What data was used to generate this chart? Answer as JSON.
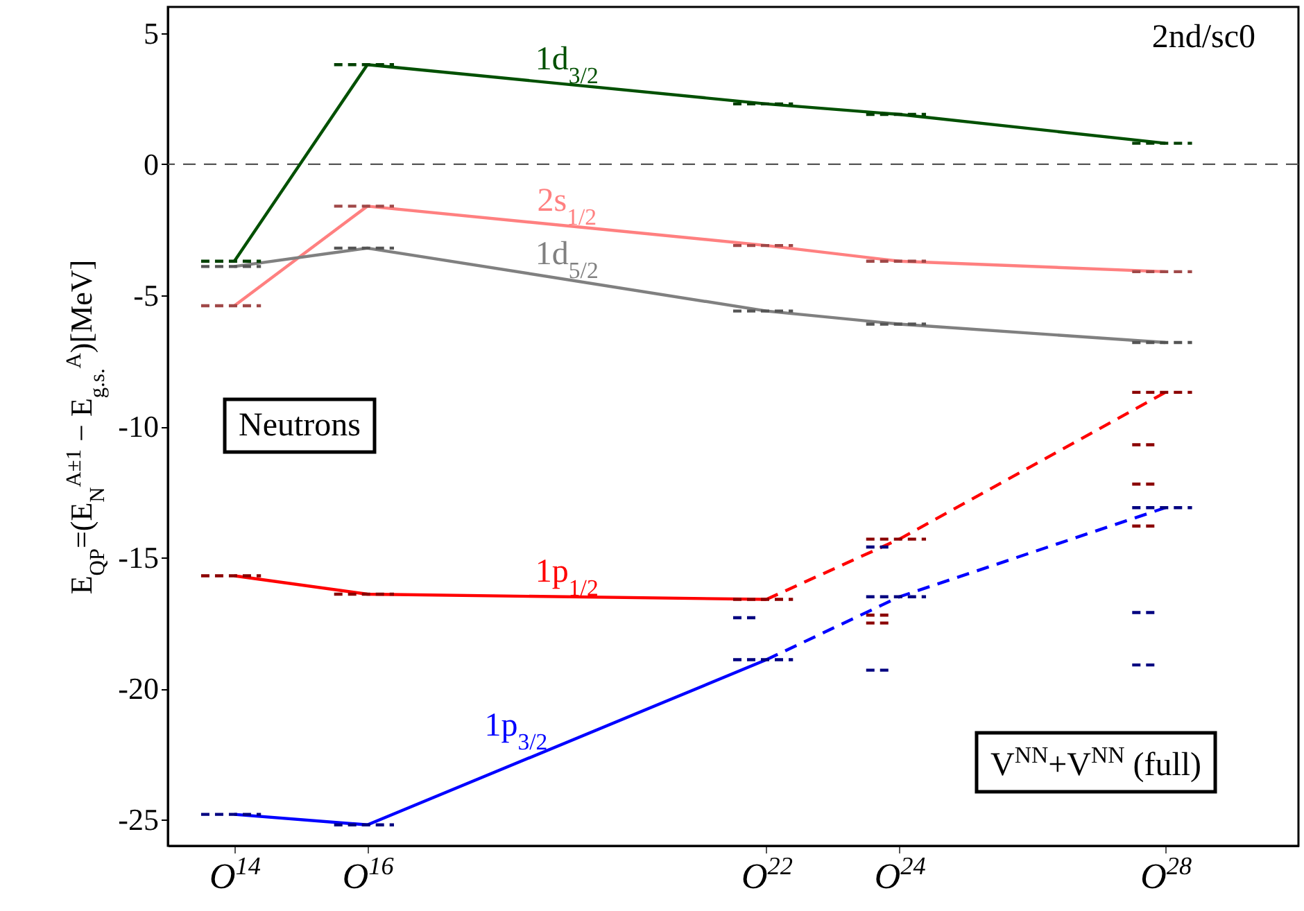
{
  "chart_data": {
    "type": "line",
    "ylabel": "E$_{QP}$=(E$_{N}$$^{A±1}$ − E$_{g.s.}$$^{A}$)[MeV]",
    "xlim": [
      13,
      30
    ],
    "xticks": [
      {
        "value": 14,
        "label": "O$^{14}$"
      },
      {
        "value": 16,
        "label": "O$^{16}$"
      },
      {
        "value": 22,
        "label": "O$^{22}$"
      },
      {
        "value": 24,
        "label": "O$^{24}$"
      },
      {
        "value": 28,
        "label": "O$^{28}$"
      }
    ],
    "ylim": [
      -26,
      6
    ],
    "yticks": [
      5,
      0,
      -5,
      -10,
      -15,
      -20,
      -25
    ],
    "annotations": [
      "2nd/sc0",
      "Neutrons",
      "V$^{NN}$+V$^{NN}$ (full)"
    ],
    "ref_lines": [
      {
        "axis": "y",
        "value": 0,
        "color": "#555555",
        "line_style": "dashed"
      }
    ],
    "series": [
      {
        "name": "1d$_{3/2}$",
        "color": "#005000",
        "x": [
          14,
          16,
          22,
          24,
          28
        ],
        "values": [
          -3.7,
          3.8,
          2.3,
          1.9,
          0.8
        ]
      },
      {
        "name": "2s$_{1/2}$",
        "color": "#ff8080",
        "x": [
          14,
          16,
          22,
          24,
          28
        ],
        "values": [
          -5.4,
          -1.6,
          -3.1,
          -3.7,
          -4.1
        ]
      },
      {
        "name": "1d$_{5/2}$",
        "color": "#808080",
        "x": [
          14,
          16,
          22,
          24,
          28
        ],
        "values": [
          -3.9,
          -3.2,
          -5.6,
          -6.1,
          -6.8
        ]
      },
      {
        "name": "1p$_{1/2}$",
        "color": "#ff0000",
        "x": [
          14,
          16,
          22
        ],
        "values": [
          -15.7,
          -16.4,
          -16.6
        ]
      },
      {
        "color": "#ff0000",
        "line_style": "dashed",
        "x": [
          22,
          24,
          28
        ],
        "values": [
          -16.6,
          -14.3,
          -8.7
        ]
      },
      {
        "name": "1p$_{3/2}$",
        "color": "#0000ff",
        "x": [
          14,
          16,
          22
        ],
        "values": [
          -24.8,
          -25.2,
          -18.9
        ]
      },
      {
        "color": "#0000ff",
        "line_style": "dashed",
        "x": [
          22,
          24,
          28
        ],
        "values": [
          -18.9,
          -16.5,
          -13.1
        ]
      },
      {
        "color": "#004000",
        "line_style": "dashed",
        "x": [
          13.5,
          14.4
        ],
        "values": [
          -3.7,
          -3.7
        ]
      },
      {
        "color": "#004000",
        "line_style": "dashed",
        "x": [
          15.5,
          16.4
        ],
        "values": [
          3.8,
          3.8
        ]
      },
      {
        "color": "#004000",
        "line_style": "dashed",
        "x": [
          21.5,
          22.4
        ],
        "values": [
          2.3,
          2.3
        ]
      },
      {
        "color": "#004000",
        "line_style": "dashed",
        "x": [
          23.5,
          24.4
        ],
        "values": [
          1.9,
          1.9
        ]
      },
      {
        "color": "#004000",
        "line_style": "dashed",
        "x": [
          27.5,
          28.4
        ],
        "values": [
          0.8,
          0.8
        ]
      },
      {
        "color": "#a04848",
        "line_style": "dashed",
        "x": [
          13.5,
          14.4
        ],
        "values": [
          -5.4,
          -5.4
        ]
      },
      {
        "color": "#a04848",
        "line_style": "dashed",
        "x": [
          15.5,
          16.4
        ],
        "values": [
          -1.6,
          -1.6
        ]
      },
      {
        "color": "#a04848",
        "line_style": "dashed",
        "x": [
          21.5,
          22.4
        ],
        "values": [
          -3.1,
          -3.1
        ]
      },
      {
        "color": "#a04848",
        "line_style": "dashed",
        "x": [
          23.5,
          24.4
        ],
        "values": [
          -3.7,
          -3.7
        ]
      },
      {
        "color": "#a04848",
        "line_style": "dashed",
        "x": [
          27.5,
          28.4
        ],
        "values": [
          -4.1,
          -4.1
        ]
      },
      {
        "color": "#555555",
        "line_style": "dashed",
        "x": [
          13.5,
          14.4
        ],
        "values": [
          -3.9,
          -3.9
        ]
      },
      {
        "color": "#555555",
        "line_style": "dashed",
        "x": [
          15.5,
          16.4
        ],
        "values": [
          -3.2,
          -3.2
        ]
      },
      {
        "color": "#555555",
        "line_style": "dashed",
        "x": [
          21.5,
          22.4
        ],
        "values": [
          -5.6,
          -5.6
        ]
      },
      {
        "color": "#555555",
        "line_style": "dashed",
        "x": [
          23.5,
          24.4
        ],
        "values": [
          -6.1,
          -6.1
        ]
      },
      {
        "color": "#555555",
        "line_style": "dashed",
        "x": [
          27.5,
          28.4
        ],
        "values": [
          -6.8,
          -6.8
        ]
      },
      {
        "color": "#8b0000",
        "line_style": "dashed",
        "x": [
          13.5,
          14.4
        ],
        "values": [
          -15.7,
          -15.7
        ]
      },
      {
        "color": "#8b0000",
        "line_style": "dashed",
        "x": [
          15.5,
          16.4
        ],
        "values": [
          -16.4,
          -16.4
        ]
      },
      {
        "color": "#8b0000",
        "line_style": "dashed",
        "x": [
          21.5,
          22.4
        ],
        "values": [
          -16.6,
          -16.6
        ]
      },
      {
        "color": "#8b0000",
        "line_style": "dashed",
        "x": [
          23.5,
          24.4
        ],
        "values": [
          -14.3,
          -14.3
        ]
      },
      {
        "color": "#8b0000",
        "line_style": "dashed",
        "x": [
          27.5,
          28.4
        ],
        "values": [
          -8.7,
          -8.7
        ]
      },
      {
        "color": "#8b0000",
        "line_style": "dashed",
        "x": [
          23.5,
          23.9
        ],
        "values": [
          -17.2,
          -17.2
        ]
      },
      {
        "color": "#8b0000",
        "line_style": "dashed",
        "x": [
          23.5,
          23.9
        ],
        "values": [
          -17.5,
          -17.5
        ]
      },
      {
        "color": "#8b0000",
        "line_style": "dashed",
        "x": [
          27.5,
          27.9
        ],
        "values": [
          -10.7,
          -10.7
        ]
      },
      {
        "color": "#8b0000",
        "line_style": "dashed",
        "x": [
          27.5,
          27.9
        ],
        "values": [
          -12.2,
          -12.2
        ]
      },
      {
        "color": "#8b0000",
        "line_style": "dashed",
        "x": [
          27.5,
          27.9
        ],
        "values": [
          -13.8,
          -13.8
        ]
      },
      {
        "color": "#000080",
        "line_style": "dashed",
        "x": [
          13.5,
          14.4
        ],
        "values": [
          -24.8,
          -24.8
        ]
      },
      {
        "color": "#000080",
        "line_style": "dashed",
        "x": [
          15.5,
          16.4
        ],
        "values": [
          -25.2,
          -25.2
        ]
      },
      {
        "color": "#000080",
        "line_style": "dashed",
        "x": [
          21.5,
          22.4
        ],
        "values": [
          -18.9,
          -18.9
        ]
      },
      {
        "color": "#000080",
        "line_style": "dashed",
        "x": [
          23.5,
          24.4
        ],
        "values": [
          -16.5,
          -16.5
        ]
      },
      {
        "color": "#000080",
        "line_style": "dashed",
        "x": [
          27.5,
          28.4
        ],
        "values": [
          -13.1,
          -13.1
        ]
      },
      {
        "color": "#000080",
        "line_style": "dashed",
        "x": [
          21.5,
          21.9
        ],
        "values": [
          -17.3,
          -17.3
        ]
      },
      {
        "color": "#000080",
        "line_style": "dashed",
        "x": [
          23.5,
          23.9
        ],
        "values": [
          -14.6,
          -14.6
        ]
      },
      {
        "color": "#000080",
        "line_style": "dashed",
        "x": [
          23.5,
          23.9
        ],
        "values": [
          -19.3,
          -19.3
        ]
      },
      {
        "color": "#000080",
        "line_style": "dashed",
        "x": [
          27.5,
          27.9
        ],
        "values": [
          -17.1,
          -17.1
        ]
      },
      {
        "color": "#000080",
        "line_style": "dashed",
        "x": [
          27.5,
          27.9
        ],
        "values": [
          -19.1,
          -19.1
        ]
      }
    ]
  }
}
